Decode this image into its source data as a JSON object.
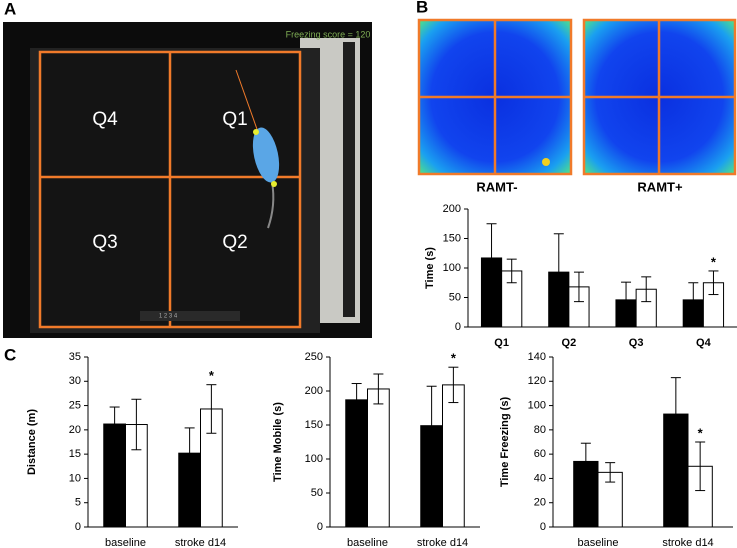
{
  "panels": {
    "a": {
      "label": "A",
      "overlay": "Freezing score = 120",
      "quadrants": [
        "Q4",
        "Q1",
        "Q3",
        "Q2"
      ],
      "controls": "1 2 3 4"
    },
    "b": {
      "label": "B",
      "heatmaps": [
        "RAMT-",
        "RAMT+"
      ]
    },
    "c": {
      "label": "C"
    }
  },
  "chart_data": [
    {
      "type": "bar",
      "y_label": "Time (s)",
      "categories": [
        "Q1",
        "Q2",
        "Q3",
        "Q4"
      ],
      "series": [
        {
          "color": "#000000",
          "values": [
            117,
            93,
            46,
            46
          ],
          "errors": [
            58,
            65,
            30,
            29
          ]
        },
        {
          "color": "#ffffff",
          "values": [
            95,
            68,
            64,
            75
          ],
          "errors": [
            20,
            25,
            21,
            20
          ]
        }
      ],
      "ylim": [
        0,
        200
      ],
      "yticks": [
        0,
        50,
        100,
        150,
        200
      ],
      "annotations": [
        {
          "text": "*",
          "series": 1,
          "category": 3
        }
      ]
    },
    {
      "type": "bar",
      "y_label": "Distance (m)",
      "categories": [
        "baseline",
        "stroke d14"
      ],
      "series": [
        {
          "color": "#000000",
          "values": [
            21.2,
            15.2
          ],
          "errors": [
            3.5,
            5.2
          ]
        },
        {
          "color": "#ffffff",
          "values": [
            21.1,
            24.3
          ],
          "errors": [
            5.2,
            5
          ]
        }
      ],
      "ylim": [
        0,
        35
      ],
      "yticks": [
        0,
        5,
        10,
        15,
        20,
        25,
        30,
        35
      ],
      "annotations": [
        {
          "text": "*",
          "series": 1,
          "category": 1
        }
      ]
    },
    {
      "type": "bar",
      "y_label": "Time Mobile (s)",
      "categories": [
        "baseline",
        "stroke d14"
      ],
      "series": [
        {
          "color": "#000000",
          "values": [
            187,
            149
          ],
          "errors": [
            24,
            58
          ]
        },
        {
          "color": "#ffffff",
          "values": [
            203,
            209
          ],
          "errors": [
            22,
            26
          ]
        }
      ],
      "ylim": [
        0,
        250
      ],
      "yticks": [
        0,
        50,
        100,
        150,
        200,
        250
      ],
      "annotations": [
        {
          "text": "*",
          "series": 1,
          "category": 1
        }
      ]
    },
    {
      "type": "bar",
      "y_label": "Time Freezing (s)",
      "categories": [
        "baseline",
        "stroke d14"
      ],
      "series": [
        {
          "color": "#000000",
          "values": [
            54,
            93
          ],
          "errors": [
            15,
            30
          ]
        },
        {
          "color": "#ffffff",
          "values": [
            45,
            50
          ],
          "errors": [
            8,
            20
          ]
        }
      ],
      "ylim": [
        0,
        140
      ],
      "yticks": [
        0,
        20,
        40,
        60,
        80,
        100,
        120,
        140
      ],
      "annotations": [
        {
          "text": "*",
          "series": 1,
          "category": 1
        }
      ]
    }
  ]
}
